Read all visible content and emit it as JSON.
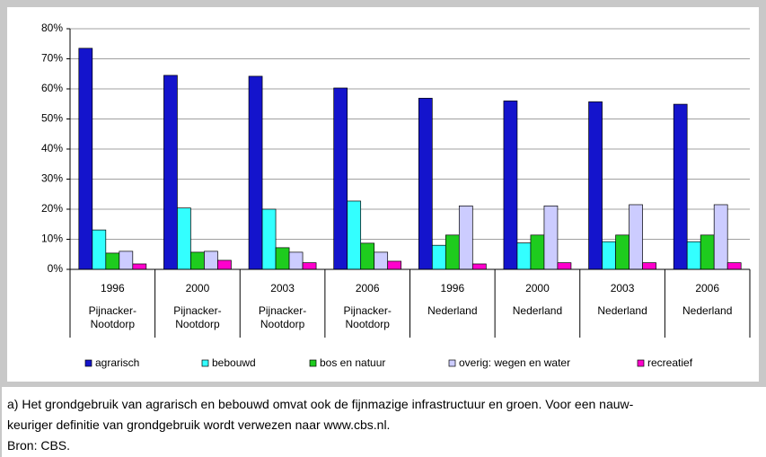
{
  "chart_data": {
    "type": "bar",
    "categories": [
      "1996",
      "2000",
      "2003",
      "2006",
      "1996",
      "2000",
      "2003",
      "2006"
    ],
    "category_groups": [
      "Pijnacker-Nootdorp",
      "Pijnacker-Nootdorp",
      "Pijnacker-Nootdorp",
      "Pijnacker-Nootdorp",
      "Nederland",
      "Nederland",
      "Nederland",
      "Nederland"
    ],
    "series": [
      {
        "name": "agrarisch",
        "color": "#1414cc",
        "values": [
          73.5,
          64.5,
          64.2,
          60.3,
          56.9,
          56.0,
          55.7,
          54.9
        ]
      },
      {
        "name": "bebouwd",
        "color": "#33ffff",
        "values": [
          13.1,
          20.4,
          20.0,
          22.7,
          8.0,
          8.8,
          9.2,
          9.2
        ]
      },
      {
        "name": "bos en natuur",
        "color": "#1ecc1e",
        "values": [
          5.4,
          5.7,
          7.2,
          8.7,
          11.4,
          11.4,
          11.4,
          11.4
        ]
      },
      {
        "name": "overig: wegen en water",
        "color": "#ccccff",
        "values": [
          6.0,
          6.0,
          5.7,
          5.7,
          21.1,
          21.1,
          21.5,
          21.5
        ]
      },
      {
        "name": "recreatief",
        "color": "#ff00cc",
        "values": [
          1.8,
          3.0,
          2.2,
          2.7,
          1.8,
          2.2,
          2.2,
          2.2
        ]
      }
    ],
    "ylim": [
      0,
      80
    ],
    "yticks": [
      {
        "value": 0,
        "label": "0%"
      },
      {
        "value": 10,
        "label": "10%"
      },
      {
        "value": 20,
        "label": "20%"
      },
      {
        "value": 30,
        "label": "30%"
      },
      {
        "value": 40,
        "label": "40%"
      },
      {
        "value": 50,
        "label": "50%"
      },
      {
        "value": 60,
        "label": "60%"
      },
      {
        "value": 70,
        "label": "70%"
      },
      {
        "value": 80,
        "label": "80%"
      }
    ],
    "grid": true,
    "legend": "bottom"
  },
  "notes": [
    "a) Het grondgebruik van agrarisch en bebouwd omvat ook de fijnmazige infrastructuur en groen. Voor een nauw-",
    "keuriger definitie van grondgebruik wordt verwezen naar www.cbs.nl.",
    "Bron: CBS."
  ]
}
